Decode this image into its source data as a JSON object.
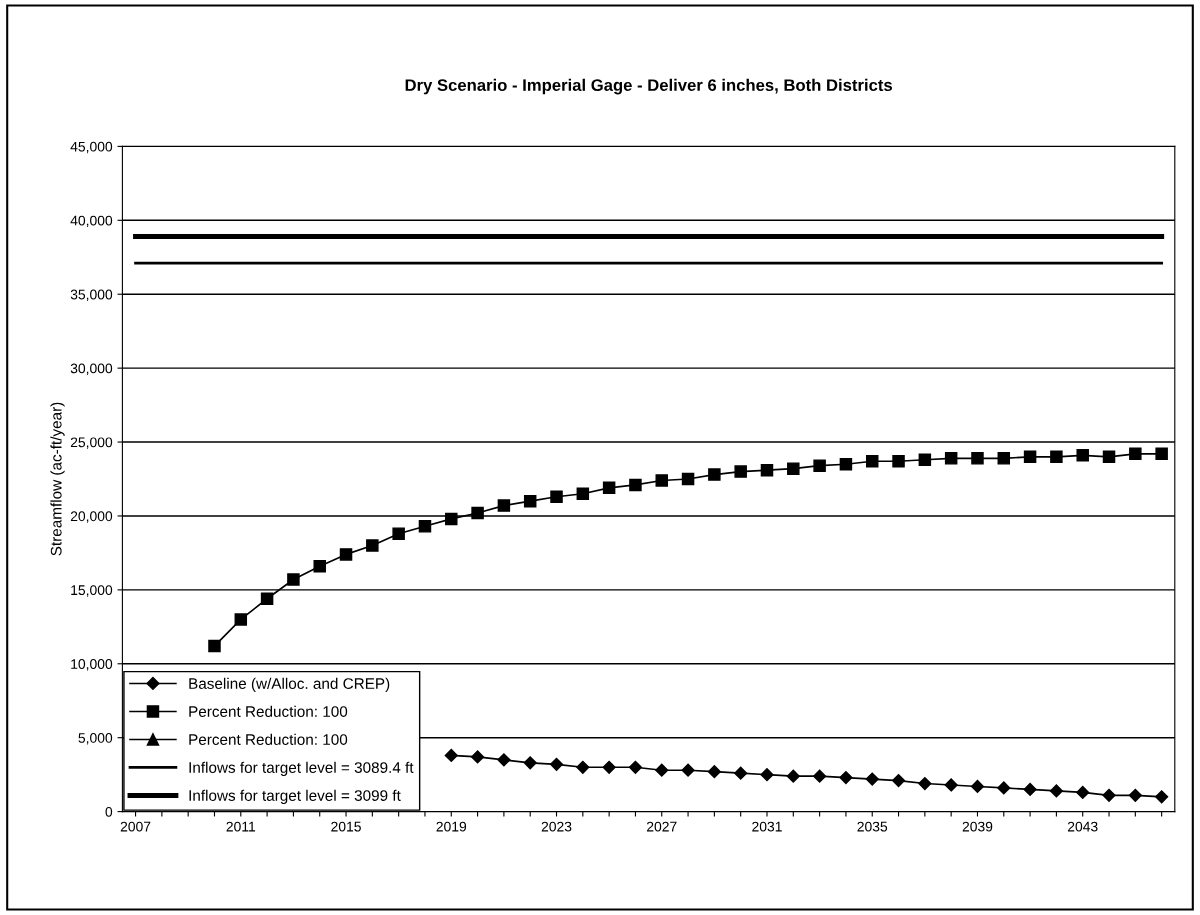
{
  "chart_data": {
    "type": "line",
    "title": "Dry Scenario - Imperial Gage - Deliver 6 inches, Both Districts",
    "ylabel": "Streamflow (ac-ft/year)",
    "categories": [
      "2007",
      null,
      null,
      null,
      "2011",
      null,
      null,
      null,
      "2015",
      null,
      null,
      null,
      "2019",
      null,
      null,
      null,
      "2023",
      null,
      null,
      null,
      "2027",
      null,
      null,
      null,
      "2031",
      null,
      null,
      null,
      "2035",
      null,
      null,
      null,
      "2039",
      null,
      null,
      null,
      "2043",
      null,
      null,
      null
    ],
    "series": [
      {
        "name": "Baseline (w/Alloc. and CREP)",
        "color": "#000000",
        "marker": "diamond",
        "values": [
          null,
          null,
          null,
          null,
          null,
          null,
          null,
          null,
          null,
          null,
          null,
          null,
          3800,
          3700,
          3500,
          3300,
          3200,
          3000,
          3000,
          3000,
          2800,
          2800,
          2700,
          2600,
          2500,
          2400,
          2400,
          2300,
          2200,
          2100,
          1900,
          1800,
          1700,
          1600,
          1500,
          1400,
          1300,
          1100,
          1100,
          1000
        ]
      },
      {
        "name": "Percent Reduction: 100",
        "color": "#000000",
        "marker": "square",
        "values": [
          null,
          null,
          null,
          11200,
          13000,
          14400,
          15700,
          16600,
          17400,
          18000,
          18800,
          19300,
          19800,
          20200,
          20700,
          21000,
          21300,
          21500,
          21900,
          22100,
          22400,
          22500,
          22800,
          23000,
          23100,
          23200,
          23400,
          23500,
          23700,
          23700,
          23800,
          23900,
          23900,
          23900,
          24000,
          24000,
          24100,
          24000,
          24200,
          24200
        ]
      },
      {
        "name": "Percent Reduction: 100",
        "color": "#000000",
        "marker": "triangle",
        "values": [
          null,
          null,
          null,
          null,
          null,
          null,
          null,
          null,
          null,
          null,
          null,
          null,
          null,
          null,
          null,
          null,
          null,
          null,
          null,
          null,
          null,
          null,
          null,
          null,
          null,
          null,
          null,
          null,
          null,
          null,
          null,
          null,
          null,
          null,
          null,
          null,
          null,
          null,
          null,
          null
        ]
      },
      {
        "name": "Inflows for target level = 3089.4 ft",
        "color": "#000000",
        "marker": "none",
        "values": [
          37100,
          37100,
          37100,
          37100,
          37100,
          37100,
          37100,
          37100,
          37100,
          37100,
          37100,
          37100,
          37100,
          37100,
          37100,
          37100,
          37100,
          37100,
          37100,
          37100,
          37100,
          37100,
          37100,
          37100,
          37100,
          37100,
          37100,
          37100,
          37100,
          37100,
          37100,
          37100,
          37100,
          37100,
          37100,
          37100,
          37100,
          37100,
          37100,
          37100
        ]
      },
      {
        "name": "Inflows for target level = 3099 ft",
        "color": "#000000",
        "marker": "none",
        "values": [
          38900,
          38900,
          38900,
          38900,
          38900,
          38900,
          38900,
          38900,
          38900,
          38900,
          38900,
          38900,
          38900,
          38900,
          38900,
          38900,
          38900,
          38900,
          38900,
          38900,
          38900,
          38900,
          38900,
          38900,
          38900,
          38900,
          38900,
          38900,
          38900,
          38900,
          38900,
          38900,
          38900,
          38900,
          38900,
          38900,
          38900,
          38900,
          38900,
          38900
        ]
      }
    ],
    "ylim": [
      0,
      45000
    ],
    "yticks": [
      0,
      {
        "value": 5000,
        "label": "5,000"
      },
      {
        "value": 10000,
        "label": "10,000"
      },
      {
        "value": 15000,
        "label": "15,000"
      },
      {
        "value": 20000,
        "label": "20,000"
      },
      {
        "value": 25000,
        "label": "25,000"
      },
      {
        "value": 30000,
        "label": "30,000"
      },
      {
        "value": 35000,
        "label": "35,000"
      },
      {
        "value": 40000,
        "label": "40,000"
      },
      {
        "value": 45000,
        "label": "45,000"
      }
    ],
    "grid": "y",
    "legend": "bottom left"
  }
}
